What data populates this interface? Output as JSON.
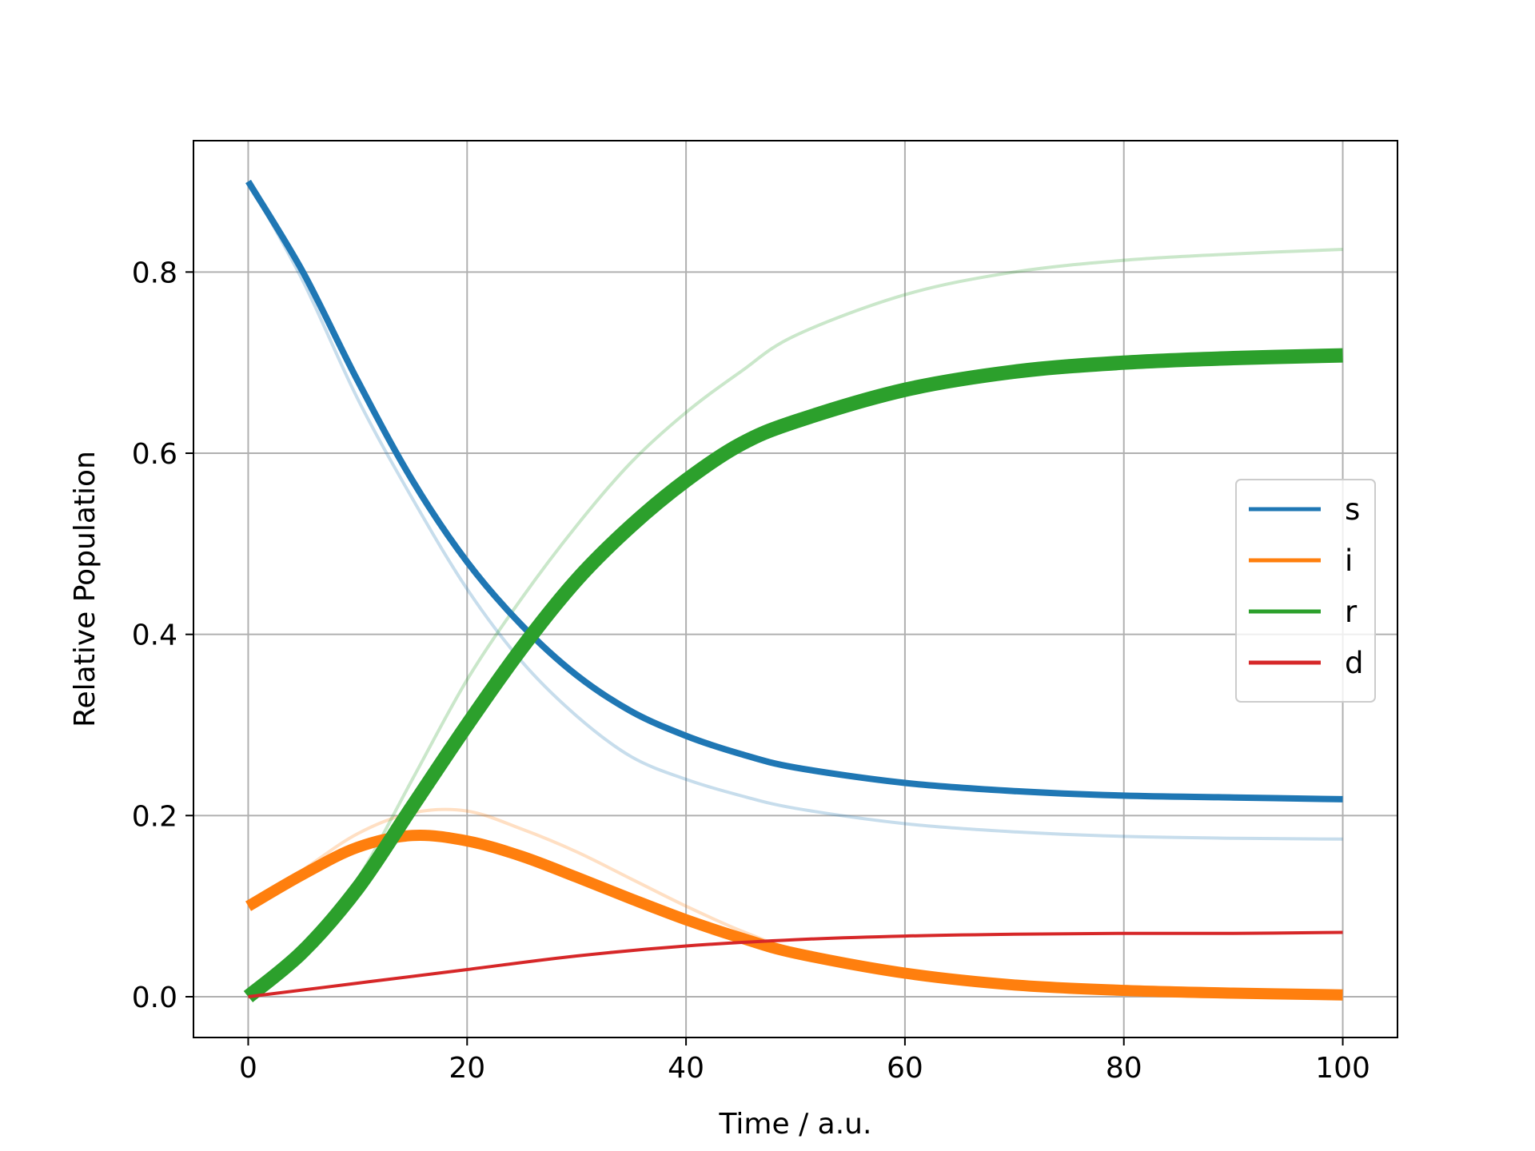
{
  "chart_data": {
    "type": "line",
    "xlabel": "Time / a.u.",
    "ylabel": "Relative Population",
    "xlim": [
      -5,
      105
    ],
    "ylim": [
      -0.045,
      0.945
    ],
    "xticks": [
      0,
      20,
      40,
      60,
      80,
      100
    ],
    "yticks": [
      0.0,
      0.2,
      0.4,
      0.6,
      0.8
    ],
    "xtick_labels": [
      "0",
      "20",
      "40",
      "60",
      "80",
      "100"
    ],
    "ytick_labels": [
      "0.0",
      "0.2",
      "0.4",
      "0.6",
      "0.8"
    ],
    "grid": true,
    "legend_position": "center-right",
    "series": [
      {
        "name": "s",
        "color": "#1f77b4",
        "style": "thick",
        "x": [
          0,
          5,
          10,
          15,
          20,
          25,
          30,
          35,
          40,
          45,
          50,
          60,
          70,
          80,
          90,
          100
        ],
        "y": [
          0.9,
          0.8,
          0.68,
          0.57,
          0.48,
          0.41,
          0.355,
          0.315,
          0.288,
          0.268,
          0.253,
          0.236,
          0.227,
          0.222,
          0.22,
          0.218
        ]
      },
      {
        "name": "i",
        "color": "#ff7f0e",
        "style": "thick",
        "x": [
          0,
          5,
          10,
          15,
          20,
          25,
          30,
          35,
          40,
          45,
          50,
          60,
          70,
          80,
          90,
          100
        ],
        "y": [
          0.1,
          0.135,
          0.165,
          0.178,
          0.172,
          0.155,
          0.132,
          0.108,
          0.085,
          0.065,
          0.048,
          0.026,
          0.013,
          0.007,
          0.004,
          0.002
        ]
      },
      {
        "name": "r",
        "color": "#2ca02c",
        "style": "thick",
        "x": [
          0,
          5,
          10,
          15,
          20,
          25,
          30,
          35,
          40,
          45,
          50,
          60,
          70,
          80,
          90,
          100
        ],
        "y": [
          0.0,
          0.05,
          0.12,
          0.21,
          0.3,
          0.385,
          0.46,
          0.52,
          0.57,
          0.61,
          0.635,
          0.67,
          0.69,
          0.7,
          0.705,
          0.708
        ]
      },
      {
        "name": "d",
        "color": "#d62728",
        "style": "thin",
        "x": [
          0,
          10,
          20,
          30,
          40,
          50,
          60,
          70,
          80,
          90,
          100
        ],
        "y": [
          0.0,
          0.015,
          0.03,
          0.045,
          0.056,
          0.063,
          0.067,
          0.069,
          0.07,
          0.07,
          0.071
        ]
      }
    ],
    "faded_series": [
      {
        "color": "#1f77b4",
        "x": [
          0,
          5,
          10,
          15,
          20,
          25,
          30,
          35,
          40,
          45,
          50,
          60,
          70,
          80,
          90,
          100
        ],
        "y": [
          0.9,
          0.79,
          0.66,
          0.55,
          0.45,
          0.37,
          0.31,
          0.265,
          0.24,
          0.222,
          0.208,
          0.191,
          0.182,
          0.177,
          0.175,
          0.174
        ]
      },
      {
        "color": "#ff7f0e",
        "x": [
          0,
          5,
          10,
          15,
          20,
          25,
          30,
          35,
          40,
          45,
          50,
          60,
          70,
          80,
          90,
          100
        ],
        "y": [
          0.1,
          0.14,
          0.18,
          0.203,
          0.205,
          0.185,
          0.16,
          0.13,
          0.1,
          0.073,
          0.052,
          0.026,
          0.013,
          0.007,
          0.004,
          0.002
        ]
      },
      {
        "color": "#2ca02c",
        "x": [
          0,
          5,
          10,
          15,
          20,
          25,
          30,
          35,
          40,
          45,
          50,
          60,
          70,
          80,
          90,
          100
        ],
        "y": [
          0.0,
          0.05,
          0.13,
          0.24,
          0.35,
          0.44,
          0.52,
          0.59,
          0.645,
          0.69,
          0.73,
          0.775,
          0.8,
          0.813,
          0.82,
          0.825
        ]
      }
    ]
  }
}
